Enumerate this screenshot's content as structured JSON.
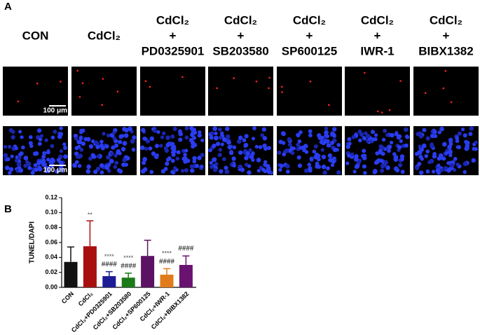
{
  "panel_a": {
    "label": "A",
    "columns": [
      [
        "CON"
      ],
      [
        "CdCl₂"
      ],
      [
        "CdCl₂",
        "+",
        "PD0325901"
      ],
      [
        "CdCl₂",
        "+",
        "SB203580"
      ],
      [
        "CdCl₂",
        "+",
        "SP600125"
      ],
      [
        "CdCl₂",
        "+",
        "IWR-1"
      ],
      [
        "CdCl₂",
        "+",
        "BIBX1382"
      ]
    ],
    "scale_bars": [
      "100 μm",
      "100 μm"
    ]
  },
  "chart_data": {
    "type": "bar",
    "label": "B",
    "ylabel": "TUNEL/DAPI",
    "categories": [
      "CON",
      "CdCl₂",
      "CdCl₂+PD0325901",
      "CdCl₂+SB203580",
      "CdCl₂+SP600125",
      "CdCl₂+IWR-1",
      "CdCl₂+BIBX1382"
    ],
    "values": [
      0.034,
      0.055,
      0.015,
      0.013,
      0.042,
      0.017,
      0.03
    ],
    "errors": [
      0.02,
      0.034,
      0.006,
      0.006,
      0.021,
      0.008,
      0.012
    ],
    "colors": [
      "#111111",
      "#a81010",
      "#1c1c96",
      "#1a7a1a",
      "#5c1264",
      "#e07c1c",
      "#6a1270"
    ],
    "stars": [
      null,
      "**",
      "****",
      "****",
      null,
      "****",
      null
    ],
    "hashes": [
      null,
      null,
      "####",
      "####",
      null,
      "####",
      "####"
    ],
    "ylim": [
      0,
      0.12
    ],
    "yticks": [
      {
        "value": 0,
        "label": "0.00"
      },
      {
        "value": 0.02,
        "label": "0.02"
      },
      {
        "value": 0.04,
        "label": "0.04"
      },
      {
        "value": 0.06,
        "label": "0.06"
      },
      {
        "value": 0.08,
        "label": "0.08"
      },
      {
        "value": 0.1,
        "label": "0.10"
      },
      {
        "value": 0.12,
        "label": "0.12"
      }
    ]
  }
}
